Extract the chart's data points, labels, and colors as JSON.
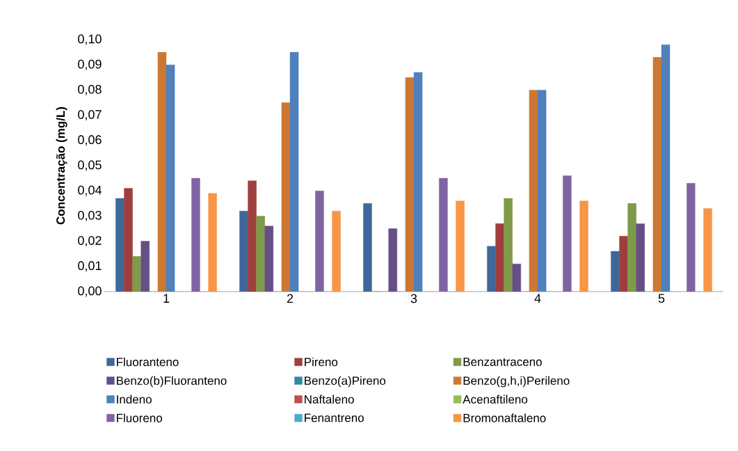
{
  "chart_data": {
    "type": "bar",
    "ylabel": "Concentração (mg/L)",
    "categories": [
      "1",
      "2",
      "3",
      "4",
      "5"
    ],
    "ylim": [
      0,
      0.1
    ],
    "yticks": [
      {
        "value": 0,
        "label": "0,00"
      },
      {
        "value": 0.01,
        "label": "0,01"
      },
      {
        "value": 0.02,
        "label": "0,02"
      },
      {
        "value": 0.03,
        "label": "0,03"
      },
      {
        "value": 0.04,
        "label": "0,04"
      },
      {
        "value": 0.05,
        "label": "0,05"
      },
      {
        "value": 0.06,
        "label": "0,06"
      },
      {
        "value": 0.07,
        "label": "0,07"
      },
      {
        "value": 0.08,
        "label": "0,08"
      },
      {
        "value": 0.09,
        "label": "0,09"
      },
      {
        "value": 0.1,
        "label": "0,10"
      }
    ],
    "legend": "bottom",
    "grid": false,
    "series": [
      {
        "name": "Fluoranteno",
        "color": "#3f679a",
        "values": [
          0.037,
          0.032,
          0.035,
          0.018,
          0.016
        ]
      },
      {
        "name": "Pireno",
        "color": "#9e3f3d",
        "values": [
          0.041,
          0.044,
          0,
          0.027,
          0.022
        ]
      },
      {
        "name": "Benzantraceno",
        "color": "#7f9a48",
        "values": [
          0.014,
          0.03,
          0,
          0.037,
          0.035
        ]
      },
      {
        "name": "Benzo(b)Fluoranteno",
        "color": "#664f86",
        "values": [
          0.02,
          0.026,
          0.025,
          0.011,
          0.027
        ]
      },
      {
        "name": "Benzo(a)Pireno",
        "color": "#2f8aa0",
        "values": [
          0,
          0,
          0,
          0,
          0
        ]
      },
      {
        "name": "Benzo(g,h,i)Perileno",
        "color": "#cc7833",
        "values": [
          0.095,
          0.075,
          0.085,
          0.08,
          0.093
        ]
      },
      {
        "name": "Indeno",
        "color": "#4f81bd",
        "values": [
          0.09,
          0.095,
          0.087,
          0.08,
          0.098
        ]
      },
      {
        "name": "Naftaleno",
        "color": "#c0504d",
        "values": [
          0,
          0,
          0,
          0,
          0
        ]
      },
      {
        "name": "Acenaftileno",
        "color": "#9bbb59",
        "values": [
          0,
          0,
          0,
          0,
          0
        ]
      },
      {
        "name": "Fluoreno",
        "color": "#8064a2",
        "values": [
          0.045,
          0.04,
          0.045,
          0.046,
          0.043
        ]
      },
      {
        "name": "Fenantreno",
        "color": "#4bacc6",
        "values": [
          0,
          0,
          0,
          0,
          0
        ]
      },
      {
        "name": "Bromonaftaleno",
        "color": "#f79646",
        "values": [
          0.039,
          0.032,
          0.036,
          0.036,
          0.033
        ]
      }
    ]
  }
}
